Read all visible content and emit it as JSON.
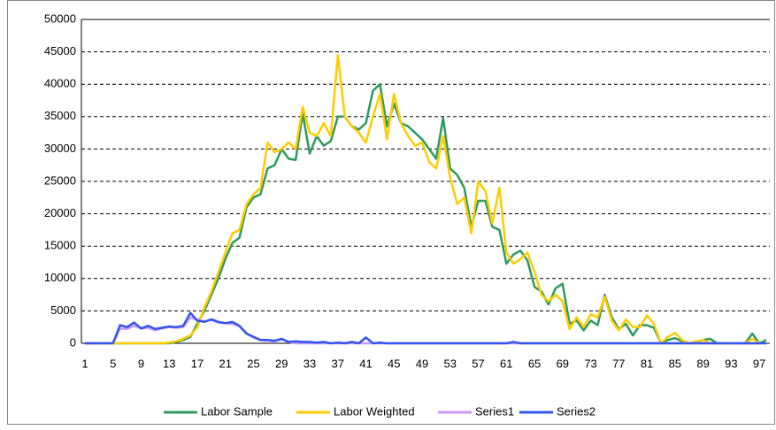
{
  "chart_data": {
    "type": "line",
    "categories": [
      1,
      null,
      null,
      null,
      5,
      null,
      null,
      null,
      9,
      null,
      null,
      null,
      13,
      null,
      null,
      null,
      17,
      null,
      null,
      null,
      21,
      null,
      null,
      null,
      25,
      null,
      null,
      null,
      29,
      null,
      null,
      null,
      33,
      null,
      null,
      null,
      37,
      null,
      null,
      null,
      41,
      null,
      null,
      null,
      45,
      null,
      null,
      null,
      49,
      null,
      null,
      null,
      53,
      null,
      null,
      null,
      57,
      null,
      null,
      null,
      61,
      null,
      null,
      null,
      65,
      null,
      null,
      null,
      69,
      null,
      null,
      null,
      73,
      null,
      null,
      null,
      77,
      null,
      null,
      null,
      81,
      null,
      null,
      null,
      85,
      null,
      null,
      null,
      89,
      null,
      null,
      null,
      93,
      null,
      null,
      null,
      97,
      null
    ],
    "series": [
      {
        "name": "Labor Sample",
        "color": "#2e9a5c",
        "values": [
          0,
          0,
          0,
          0,
          0,
          0,
          0,
          0,
          0,
          0,
          0,
          0,
          0,
          200,
          500,
          1000,
          3000,
          5000,
          7500,
          10000,
          13000,
          15500,
          16300,
          21000,
          22500,
          23000,
          27000,
          27500,
          30000,
          28500,
          28300,
          35500,
          29300,
          32000,
          30500,
          31200,
          35000,
          35000,
          33500,
          33000,
          34000,
          39000,
          40000,
          33500,
          37000,
          34000,
          33500,
          32500,
          31500,
          30000,
          28500,
          34800,
          27000,
          26000,
          24000,
          18000,
          22000,
          22000,
          18000,
          17500,
          12300,
          13700,
          14300,
          12800,
          8700,
          8000,
          6000,
          8500,
          9200,
          3000,
          3500,
          2000,
          3500,
          2800,
          7500,
          4000,
          2200,
          3000,
          1200,
          2800,
          2800,
          2400,
          0,
          500,
          800,
          300,
          0,
          200,
          500,
          700,
          0,
          0,
          0,
          0,
          0,
          1500,
          0,
          500
        ]
      },
      {
        "name": "Labor Weighted",
        "color": "#ffcc00",
        "values": [
          0,
          0,
          0,
          0,
          0,
          0,
          0,
          0,
          0,
          0,
          0,
          0,
          100,
          300,
          700,
          1200,
          2500,
          5500,
          8000,
          11000,
          14000,
          17000,
          17500,
          21500,
          23000,
          24000,
          31000,
          29500,
          30000,
          31000,
          30000,
          36500,
          32500,
          32000,
          34000,
          32000,
          44500,
          35000,
          33500,
          32500,
          31000,
          35000,
          38500,
          31500,
          38500,
          34000,
          32000,
          30500,
          31000,
          28000,
          27000,
          32000,
          25500,
          21500,
          22500,
          17000,
          25000,
          23500,
          18500,
          24000,
          14000,
          12300,
          13000,
          14000,
          11000,
          7500,
          6500,
          7500,
          6500,
          2200,
          4000,
          2500,
          4500,
          4000,
          7200,
          3500,
          2000,
          3700,
          2500,
          2500,
          4300,
          3000,
          0,
          1000,
          1600,
          500,
          0,
          300,
          500,
          0,
          0,
          0,
          0,
          0,
          0,
          700,
          0,
          0
        ]
      },
      {
        "name": "Series1",
        "color": "#cc99ff",
        "values": [
          0,
          0,
          0,
          0,
          0,
          2300,
          2200,
          2700,
          2300,
          2400,
          2000,
          2300,
          2500,
          2400,
          2500,
          4000,
          3600,
          3400,
          3600,
          3200,
          3100,
          3000,
          2600,
          1500,
          900,
          500,
          400,
          300,
          600,
          200,
          0,
          0,
          0,
          0,
          0,
          0,
          0,
          0,
          0,
          0,
          0,
          0,
          0,
          0,
          0,
          0,
          0,
          0,
          0,
          0,
          0,
          0,
          0,
          0,
          0,
          0,
          0,
          0,
          0,
          0,
          0,
          0,
          0,
          0,
          0,
          0,
          0,
          0,
          0,
          0,
          0,
          0,
          0,
          0,
          0,
          0,
          0,
          0,
          0,
          0,
          0,
          0,
          0,
          0,
          0,
          0,
          0,
          0,
          0,
          0,
          0,
          0,
          0,
          0,
          0,
          0,
          0,
          0
        ]
      },
      {
        "name": "Series2",
        "color": "#3355ee",
        "values": [
          0,
          0,
          0,
          0,
          0,
          2800,
          2500,
          3200,
          2300,
          2700,
          2200,
          2400,
          2600,
          2500,
          2700,
          4700,
          3500,
          3300,
          3700,
          3300,
          3100,
          3300,
          2700,
          1500,
          1000,
          500,
          500,
          400,
          700,
          200,
          300,
          200,
          200,
          100,
          200,
          0,
          100,
          0,
          200,
          0,
          900,
          0,
          100,
          0,
          0,
          0,
          0,
          0,
          0,
          0,
          0,
          0,
          0,
          0,
          0,
          0,
          0,
          0,
          0,
          0,
          0,
          200,
          0,
          0,
          0,
          0,
          0,
          0,
          0,
          0,
          0,
          0,
          0,
          0,
          0,
          0,
          0,
          0,
          0,
          0,
          0,
          0,
          0,
          0,
          0,
          0,
          0,
          0,
          0,
          0,
          0,
          0,
          0,
          0,
          0,
          0,
          0,
          0
        ]
      }
    ],
    "ylim": [
      0,
      50000
    ],
    "yticks": [
      0,
      5000,
      10000,
      15000,
      20000,
      25000,
      30000,
      35000,
      40000,
      45000,
      50000
    ],
    "grid": true,
    "legend": "bottom"
  }
}
